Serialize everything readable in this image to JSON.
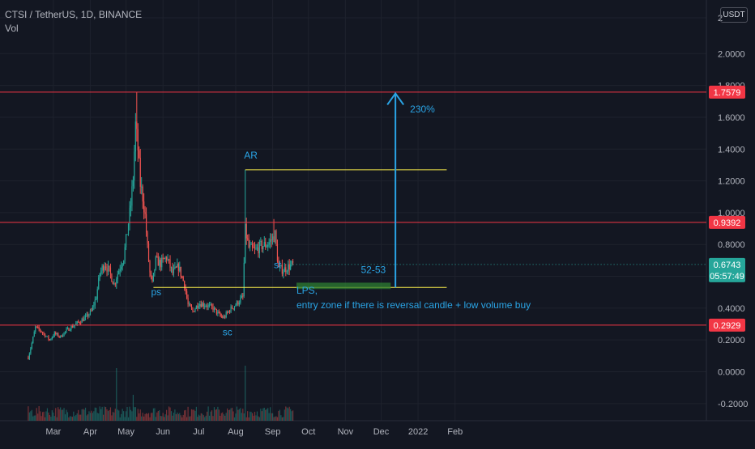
{
  "header": {
    "symbol_line": "CTSI / TetherUS, 1D, BINANCE",
    "volume_label": "Vol",
    "currency_button": "USDT"
  },
  "colors": {
    "background": "#131722",
    "grid": "#1e222d",
    "up": "#26a69a",
    "down": "#ef5350",
    "level_line": "#f23645",
    "range_line": "#f5e84a",
    "annotation": "#2aa4e5",
    "zone": "#2e7d32",
    "axis_text": "#b2b5be"
  },
  "chart_data": {
    "type": "candlestick",
    "title": "CTSI / TetherUS, 1D, BINANCE",
    "y_axis": {
      "ticks": [
        "2",
        "2.0000",
        "1.8000",
        "1.6000",
        "1.4000",
        "1.2000",
        "1.0000",
        "0.8000",
        "0.6000",
        "0.4000",
        "0.2000",
        "0.0000",
        "-0.2000"
      ],
      "ylim": [
        -0.3,
        2.15
      ]
    },
    "x_axis": {
      "ticks": [
        "Mar",
        "Apr",
        "May",
        "Jun",
        "Jul",
        "Aug",
        "Sep",
        "Oct",
        "Nov",
        "Dec",
        "2022",
        "Feb"
      ]
    },
    "price_labels": [
      {
        "value": 1.7579,
        "text": "1.7579",
        "color": "#f23645"
      },
      {
        "value": 0.9392,
        "text": "0.9392",
        "color": "#f23645"
      },
      {
        "value": 0.6743,
        "text": "0.6743",
        "color": "#26a69a",
        "countdown": "05:57:49"
      },
      {
        "value": 0.2929,
        "text": "0.2929",
        "color": "#f23645"
      }
    ],
    "horizontal_levels": [
      1.7579,
      0.9392,
      0.2929
    ],
    "range_lines": [
      {
        "value": 1.27,
        "from": "2021-08-09",
        "to": "2022-01-25"
      },
      {
        "value": 0.53,
        "from": "2021-05-24",
        "to": "2022-01-25"
      }
    ],
    "entry_zone": {
      "low": 0.52,
      "high": 0.56,
      "from": "2021-09-21",
      "to": "2021-12-09",
      "label": "52-53"
    },
    "target_arrow": {
      "date": "2021-12-13",
      "from": 0.53,
      "to": 1.75,
      "label": "230%"
    },
    "annotations": [
      {
        "text": "AR",
        "date": "2021-08-08",
        "value": 1.34
      },
      {
        "text": "ps",
        "date": "2021-05-22",
        "value": 0.48
      },
      {
        "text": "sc",
        "date": "2021-07-21",
        "value": 0.23
      },
      {
        "text": "st",
        "date": "2021-09-02",
        "value": 0.65
      },
      {
        "text": "LPS,",
        "date": "2021-09-21",
        "value": 0.49
      },
      {
        "text": "entry zone if there is reversal candle + low volume buy",
        "date": "2021-09-21",
        "value": 0.4
      }
    ],
    "price_series_points": [
      [
        "2021-02-08",
        0.09
      ],
      [
        "2021-02-11",
        0.18
      ],
      [
        "2021-02-14",
        0.28
      ],
      [
        "2021-02-18",
        0.26
      ],
      [
        "2021-02-22",
        0.23
      ],
      [
        "2021-02-26",
        0.2
      ],
      [
        "2021-03-02",
        0.24
      ],
      [
        "2021-03-07",
        0.22
      ],
      [
        "2021-03-12",
        0.26
      ],
      [
        "2021-03-18",
        0.29
      ],
      [
        "2021-03-24",
        0.32
      ],
      [
        "2021-03-28",
        0.34
      ],
      [
        "2021-04-02",
        0.38
      ],
      [
        "2021-04-06",
        0.47
      ],
      [
        "2021-04-09",
        0.62
      ],
      [
        "2021-04-13",
        0.68
      ],
      [
        "2021-04-17",
        0.63
      ],
      [
        "2021-04-21",
        0.55
      ],
      [
        "2021-04-25",
        0.64
      ],
      [
        "2021-04-29",
        0.72
      ],
      [
        "2021-05-02",
        0.88
      ],
      [
        "2021-05-05",
        1.05
      ],
      [
        "2021-05-07",
        1.22
      ],
      [
        "2021-05-09",
        1.55
      ],
      [
        "2021-05-11",
        1.4
      ],
      [
        "2021-05-13",
        1.18
      ],
      [
        "2021-05-15",
        1.1
      ],
      [
        "2021-05-17",
        0.98
      ],
      [
        "2021-05-19",
        0.78
      ],
      [
        "2021-05-21",
        0.62
      ],
      [
        "2021-05-23",
        0.55
      ],
      [
        "2021-05-26",
        0.7
      ],
      [
        "2021-05-30",
        0.68
      ],
      [
        "2021-06-04",
        0.72
      ],
      [
        "2021-06-09",
        0.62
      ],
      [
        "2021-06-14",
        0.66
      ],
      [
        "2021-06-19",
        0.55
      ],
      [
        "2021-06-22",
        0.42
      ],
      [
        "2021-06-26",
        0.38
      ],
      [
        "2021-07-01",
        0.43
      ],
      [
        "2021-07-07",
        0.42
      ],
      [
        "2021-07-13",
        0.4
      ],
      [
        "2021-07-19",
        0.35
      ],
      [
        "2021-07-22",
        0.34
      ],
      [
        "2021-07-27",
        0.39
      ],
      [
        "2021-08-02",
        0.43
      ],
      [
        "2021-08-07",
        0.47
      ],
      [
        "2021-08-09",
        0.89
      ],
      [
        "2021-08-12",
        0.78
      ],
      [
        "2021-08-17",
        0.76
      ],
      [
        "2021-08-22",
        0.79
      ],
      [
        "2021-08-27",
        0.8
      ],
      [
        "2021-08-31",
        0.83
      ],
      [
        "2021-09-03",
        0.86
      ],
      [
        "2021-09-06",
        0.65
      ],
      [
        "2021-09-10",
        0.64
      ],
      [
        "2021-09-14",
        0.66
      ],
      [
        "2021-09-18",
        0.6743
      ]
    ]
  }
}
